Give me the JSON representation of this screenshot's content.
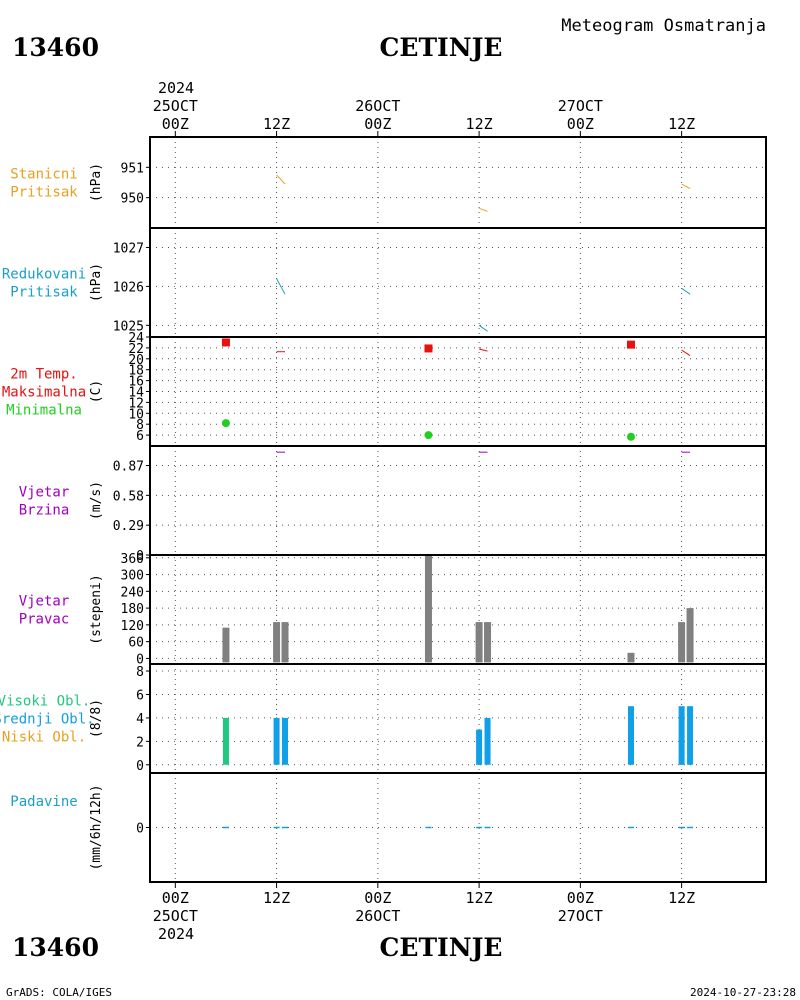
{
  "header": {
    "meteogram_title": "Meteogram Osmatranja",
    "station_id": "13460",
    "station_name": "CETINJE",
    "footer_left": "GrADS: COLA/IGES",
    "footer_right": "2024-10-27-23:28"
  },
  "time_axis": {
    "top_year": "2024",
    "bottom_year": "2024",
    "major_labels": [
      {
        "t": 0,
        "line1": "00Z",
        "line2": "25OCT"
      },
      {
        "t": 12,
        "line1": "12Z",
        "line2": ""
      },
      {
        "t": 24,
        "line1": "00Z",
        "line2": "26OCT"
      },
      {
        "t": 36,
        "line1": "12Z",
        "line2": ""
      },
      {
        "t": 48,
        "line1": "00Z",
        "line2": "27OCT"
      },
      {
        "t": 60,
        "line1": "12Z",
        "line2": ""
      }
    ],
    "range_hours": [
      -3,
      70
    ]
  },
  "colors": {
    "station_pressure": "#e8a020",
    "reduced_pressure": "#1aa0c8",
    "temp_max": "#e81010",
    "temp_min": "#20d020",
    "wind": "#a000c0",
    "wind_dir_bar": "#808080",
    "high_cloud": "#20c880",
    "mid_cloud": "#10a0e8",
    "low_cloud": "#e8a020",
    "precip": "#1aa0c8",
    "grid": "#555555"
  },
  "chart_data": [
    {
      "type": "line",
      "id": "station_pressure",
      "label_lines": [
        "Stanicni",
        "Pritisak"
      ],
      "ylabel": "(hPa)",
      "ylim": [
        949.0,
        952.0
      ],
      "yticks": [
        950,
        951
      ],
      "series": [
        {
          "x": [
            12,
            13
          ],
          "values": [
            950.75,
            950.45
          ]
        },
        {
          "x": [
            36,
            37
          ],
          "values": [
            949.65,
            949.55
          ]
        },
        {
          "x": [
            60,
            61
          ],
          "values": [
            950.45,
            950.3
          ]
        }
      ]
    },
    {
      "type": "line",
      "id": "reduced_pressure",
      "label_lines": [
        "Redukovani",
        "Pritisak"
      ],
      "ylabel": "(hPa)",
      "ylim": [
        1024.7,
        1027.5
      ],
      "yticks": [
        1025,
        1026,
        1027
      ],
      "series": [
        {
          "x": [
            12,
            13
          ],
          "values": [
            1026.2,
            1025.8
          ]
        },
        {
          "x": [
            36,
            37
          ],
          "values": [
            1025.0,
            1024.85
          ]
        },
        {
          "x": [
            60,
            61
          ],
          "values": [
            1025.95,
            1025.8
          ]
        }
      ]
    },
    {
      "type": "scatter",
      "id": "temperature",
      "label_lines": [
        "2m Temp.",
        "Maksimalna",
        "Minimalna"
      ],
      "ylabel": "(C)",
      "ylim": [
        4,
        24
      ],
      "yticks": [
        6,
        8,
        10,
        12,
        14,
        16,
        18,
        20,
        22,
        24
      ],
      "max_points": {
        "x": [
          6,
          30,
          54
        ],
        "values": [
          23,
          21.9,
          22.6
        ]
      },
      "min_points": {
        "x": [
          6,
          30,
          54
        ],
        "values": [
          8.2,
          6.0,
          5.7
        ]
      },
      "series": [
        {
          "x": [
            12,
            13
          ],
          "values": [
            21.3,
            21.3
          ]
        },
        {
          "x": [
            36,
            37
          ],
          "values": [
            21.8,
            21.4
          ]
        },
        {
          "x": [
            60,
            61
          ],
          "values": [
            21.6,
            20.6
          ]
        }
      ]
    },
    {
      "type": "line",
      "id": "wind_speed",
      "label_lines": [
        "Vjetar",
        "Brzina"
      ],
      "ylabel": "(m/s)",
      "ylim": [
        0,
        1.06
      ],
      "yticks": [
        0,
        0.29,
        0.58,
        0.87
      ],
      "series": [
        {
          "x": [
            12,
            13
          ],
          "values": [
            1.0,
            1.0
          ]
        },
        {
          "x": [
            36,
            37
          ],
          "values": [
            1.0,
            1.0
          ]
        },
        {
          "x": [
            60,
            61
          ],
          "values": [
            1.0,
            1.0
          ]
        }
      ]
    },
    {
      "type": "bar",
      "id": "wind_direction",
      "label_lines": [
        "Vjetar",
        "Pravac"
      ],
      "ylabel": "(stepeni)",
      "ylim": [
        -20,
        370
      ],
      "yticks": [
        0,
        60,
        120,
        180,
        240,
        300,
        360
      ],
      "bars": {
        "x": [
          6,
          12,
          13,
          30,
          36,
          37,
          54,
          60,
          61
        ],
        "values": [
          110,
          130,
          130,
          380,
          130,
          130,
          20,
          130,
          180
        ]
      }
    },
    {
      "type": "bar",
      "id": "clouds",
      "label_lines": [
        "Visoki Obl.",
        "Srednji Obl.",
        "Niski Obl."
      ],
      "ylabel": "(8/8)",
      "ylim": [
        -0.7,
        8.6
      ],
      "yticks": [
        0,
        2,
        4,
        6,
        8
      ],
      "high_bars": {
        "x": [
          6
        ],
        "values": [
          4
        ]
      },
      "mid_bars": {
        "x": [
          12,
          13,
          36,
          37,
          54,
          60,
          61
        ],
        "values": [
          4,
          4,
          3,
          4,
          5,
          5,
          5
        ]
      }
    },
    {
      "type": "bar",
      "id": "precipitation",
      "label_lines": [
        "Padavine"
      ],
      "ylabel": "(mm/6h/12h)",
      "ylim": [
        -2,
        2
      ],
      "yticks": [
        0
      ],
      "points": {
        "x": [
          6,
          12,
          13,
          30,
          36,
          37,
          54,
          60,
          61
        ],
        "values": [
          0,
          0,
          0,
          0,
          0,
          0,
          0,
          0,
          0
        ]
      }
    }
  ]
}
